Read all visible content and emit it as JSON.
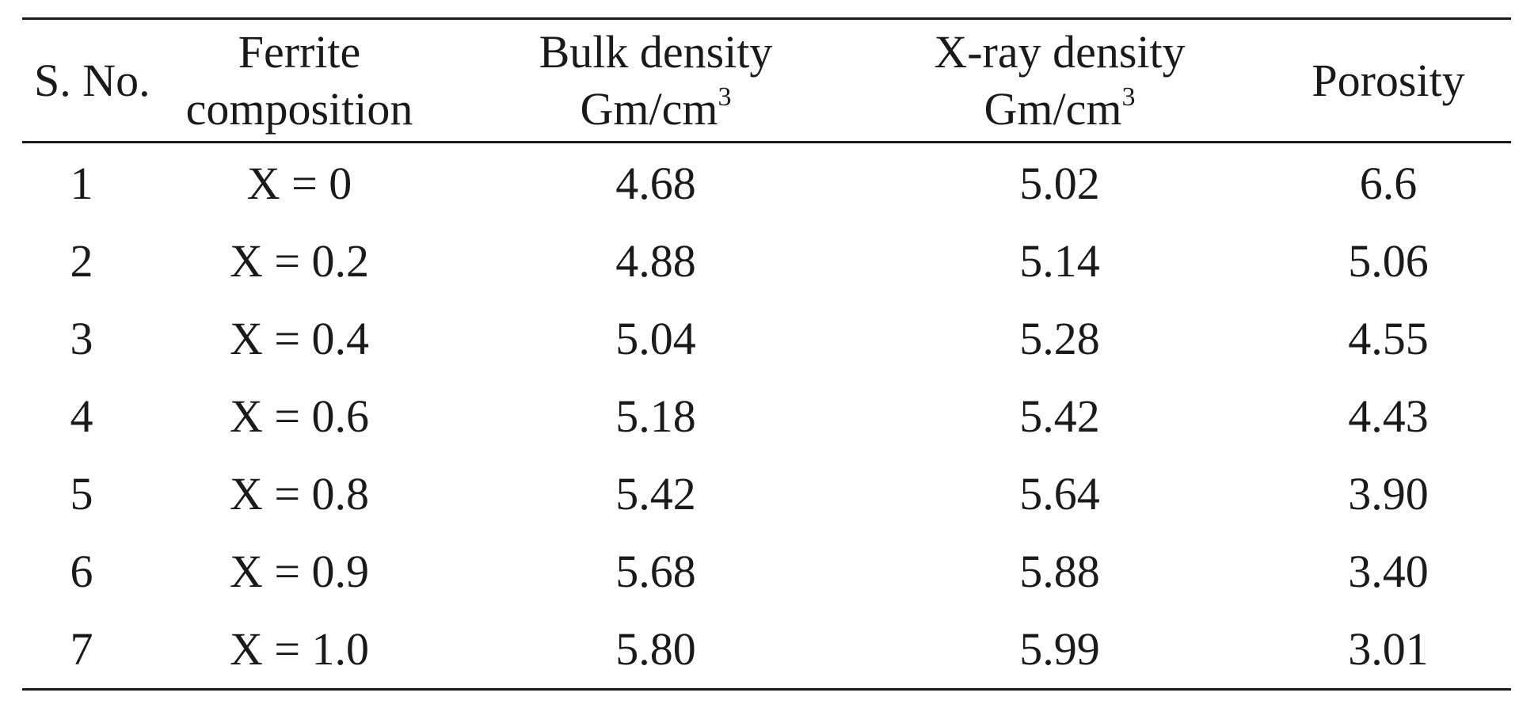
{
  "table": {
    "headers": {
      "sno": "S. No.",
      "composition_line1": "Ferrite",
      "composition_line2": "composition",
      "bulk_line1": "Bulk density",
      "bulk_unit": "Gm/cm",
      "bulk_unit_sup": "3",
      "xray_line1": "X-ray density",
      "xray_unit": "Gm/cm",
      "xray_unit_sup": "3",
      "porosity": "Porosity"
    },
    "rows": [
      {
        "sno": "1",
        "composition": "X = 0",
        "bulk": "4.68",
        "xray": "5.02",
        "porosity": "6.6"
      },
      {
        "sno": "2",
        "composition": "X = 0.2",
        "bulk": "4.88",
        "xray": "5.14",
        "porosity": "5.06"
      },
      {
        "sno": "3",
        "composition": "X = 0.4",
        "bulk": "5.04",
        "xray": "5.28",
        "porosity": "4.55"
      },
      {
        "sno": "4",
        "composition": "X = 0.6",
        "bulk": "5.18",
        "xray": "5.42",
        "porosity": "4.43"
      },
      {
        "sno": "5",
        "composition": "X = 0.8",
        "bulk": "5.42",
        "xray": "5.64",
        "porosity": "3.90"
      },
      {
        "sno": "6",
        "composition": "X = 0.9",
        "bulk": "5.68",
        "xray": "5.88",
        "porosity": "3.40"
      },
      {
        "sno": "7",
        "composition": "X = 1.0",
        "bulk": "5.80",
        "xray": "5.99",
        "porosity": "3.01"
      }
    ]
  }
}
